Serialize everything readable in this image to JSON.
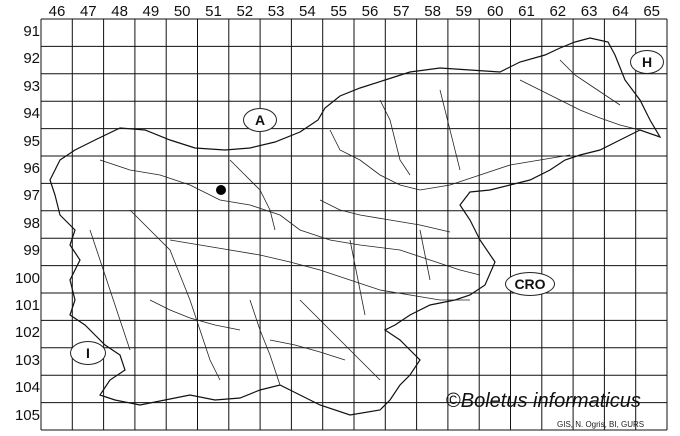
{
  "grid": {
    "columns": [
      "46",
      "47",
      "48",
      "49",
      "50",
      "51",
      "52",
      "53",
      "54",
      "55",
      "56",
      "57",
      "58",
      "59",
      "60",
      "61",
      "62",
      "63",
      "64",
      "65"
    ],
    "rows": [
      "91",
      "92",
      "93",
      "94",
      "95",
      "96",
      "97",
      "98",
      "99",
      "100",
      "101",
      "102",
      "103",
      "104",
      "105"
    ]
  },
  "countries": {
    "austria": "A",
    "hungary": "H",
    "croatia": "CRO",
    "italy": "I"
  },
  "record": {
    "column": "51",
    "row": "97"
  },
  "watermark": {
    "copyright": "©",
    "name": "Boletus informaticus"
  },
  "credits": "GIS, N. Ogris, BI, GURS"
}
